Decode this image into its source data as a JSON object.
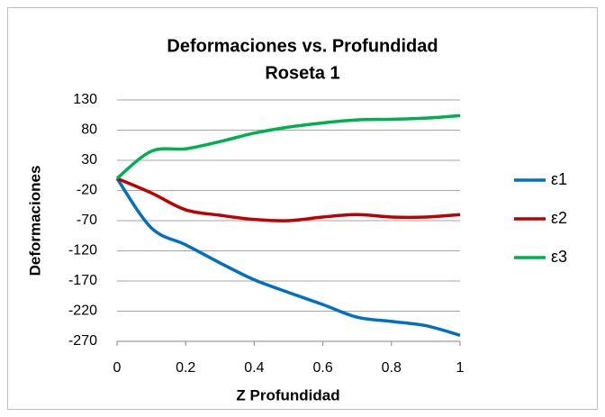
{
  "chart_data": {
    "type": "line",
    "title": "Deformaciones vs. Profundidad",
    "subtitle": "Roseta 1",
    "x_label": "Z Profundidad",
    "y_label": "Deformaciones",
    "x": [
      0,
      0.1,
      0.2,
      0.3,
      0.4,
      0.5,
      0.6,
      0.7,
      0.8,
      0.9,
      1
    ],
    "series": [
      {
        "name": "ε1",
        "color": "#0070c0",
        "values": [
          0,
          -82,
          -110,
          -140,
          -168,
          -189,
          -209,
          -230,
          -237,
          -244,
          -260
        ]
      },
      {
        "name": "ε2",
        "color": "#c00000",
        "values": [
          0,
          -24,
          -52,
          -61,
          -68,
          -70,
          -64,
          -60,
          -64,
          -64,
          -60
        ]
      },
      {
        "name": "ε3",
        "color": "#00b050",
        "values": [
          0,
          45,
          49,
          61,
          75,
          85,
          92,
          97,
          98,
          100,
          104
        ]
      }
    ],
    "xlim": [
      0,
      1
    ],
    "xticks": [
      0,
      0.2,
      0.4,
      0.6,
      0.8,
      1
    ],
    "ylim": [
      -270,
      130
    ],
    "yticks": [
      -270,
      -220,
      -170,
      -120,
      -70,
      -20,
      30,
      80,
      130
    ],
    "grid": true,
    "legend": "right"
  }
}
